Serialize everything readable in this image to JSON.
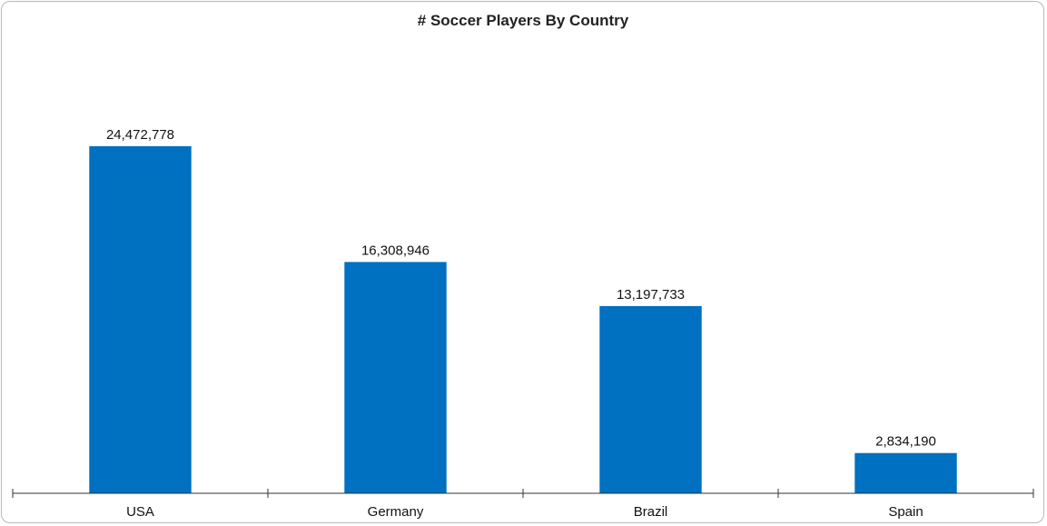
{
  "chart_data": {
    "type": "bar",
    "title": "# Soccer Players By Country",
    "categories": [
      "USA",
      "Germany",
      "Brazil",
      "Spain"
    ],
    "values": [
      24472778,
      16308946,
      13197733,
      2834190
    ],
    "value_labels": [
      "24,472,778",
      "16,308,946",
      "13,197,733",
      "2,834,190"
    ],
    "xlabel": "",
    "ylabel": "",
    "ylim": [
      0,
      28500000
    ],
    "grid": false,
    "legend": "none",
    "bar_color": "#0070c0"
  }
}
